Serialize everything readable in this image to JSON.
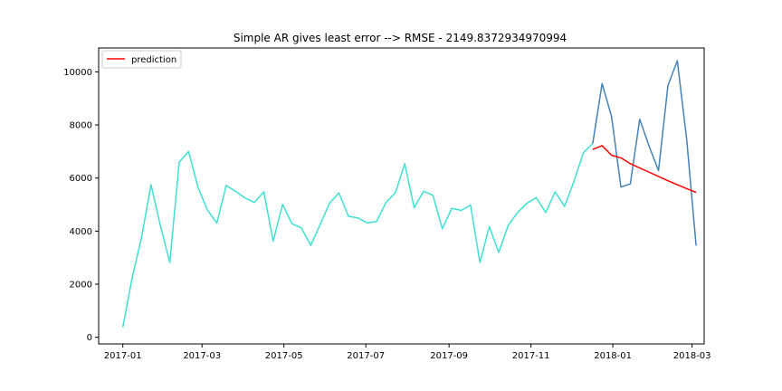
{
  "chart_data": {
    "type": "line",
    "title": "Simple AR gives least error --> RMSE - 2149.8372934970994",
    "xlabel": "",
    "ylabel": "",
    "x_ticks": [
      "2017-01",
      "2017-03",
      "2017-05",
      "2017-07",
      "2017-09",
      "2017-11",
      "2018-01",
      "2018-03"
    ],
    "y_ticks": [
      "0",
      "2000",
      "4000",
      "6000",
      "8000",
      "10000"
    ],
    "ylim": [
      -250,
      10900
    ],
    "xlim": [
      "2016-12-14",
      "2018-03-10"
    ],
    "grid": false,
    "legend": {
      "placement": "top-left",
      "entries": [
        "prediction"
      ]
    },
    "colors": {
      "train": "#40e0d0",
      "test": "#4682b4",
      "prediction": "#ff0000"
    },
    "series": [
      {
        "key": "train",
        "x": [
          "2017-01-01",
          "2017-01-08",
          "2017-01-15",
          "2017-01-22",
          "2017-01-29",
          "2017-02-05",
          "2017-02-12",
          "2017-02-19",
          "2017-02-26",
          "2017-03-05",
          "2017-03-12",
          "2017-03-19",
          "2017-03-26",
          "2017-04-02",
          "2017-04-09",
          "2017-04-16",
          "2017-04-23",
          "2017-04-30",
          "2017-05-07",
          "2017-05-14",
          "2017-05-21",
          "2017-05-28",
          "2017-06-04",
          "2017-06-11",
          "2017-06-18",
          "2017-06-25",
          "2017-07-02",
          "2017-07-09",
          "2017-07-16",
          "2017-07-23",
          "2017-07-30",
          "2017-08-06",
          "2017-08-13",
          "2017-08-20",
          "2017-08-27",
          "2017-09-03",
          "2017-09-10",
          "2017-09-17",
          "2017-09-24",
          "2017-10-01",
          "2017-10-08",
          "2017-10-15",
          "2017-10-22",
          "2017-10-29",
          "2017-11-05",
          "2017-11-12",
          "2017-11-19",
          "2017-11-26",
          "2017-12-03",
          "2017-12-10",
          "2017-12-17"
        ],
        "values": [
          380,
          2250,
          3780,
          5750,
          4200,
          2820,
          6600,
          7000,
          5650,
          4800,
          4300,
          5720,
          5500,
          5250,
          5080,
          5480,
          3620,
          5010,
          4280,
          4120,
          3460,
          4250,
          5060,
          5440,
          4560,
          4500,
          4310,
          4360,
          5080,
          5440,
          6540,
          4880,
          5500,
          5350,
          4090,
          4860,
          4780,
          4980,
          2820,
          4170,
          3200,
          4210,
          4700,
          5050,
          5260,
          4700,
          5480,
          4930,
          5870,
          6950,
          7300
        ]
      },
      {
        "key": "test",
        "x": [
          "2017-12-17",
          "2017-12-24",
          "2017-12-31",
          "2018-01-07",
          "2018-01-14",
          "2018-01-21",
          "2018-01-28",
          "2018-02-04",
          "2018-02-11",
          "2018-02-18",
          "2018-02-25",
          "2018-03-04"
        ],
        "values": [
          7300,
          9560,
          8320,
          5660,
          5780,
          8220,
          7200,
          6280,
          9480,
          10420,
          7450,
          3450
        ]
      },
      {
        "name": "prediction",
        "key": "prediction",
        "x": [
          "2017-12-17",
          "2017-12-24",
          "2017-12-31",
          "2018-01-07",
          "2018-01-14",
          "2018-01-21",
          "2018-01-28",
          "2018-02-04",
          "2018-02-11",
          "2018-02-18",
          "2018-02-25",
          "2018-03-04"
        ],
        "values": [
          7080,
          7220,
          6860,
          6760,
          6540,
          6380,
          6220,
          6060,
          5900,
          5750,
          5600,
          5460
        ]
      }
    ]
  }
}
